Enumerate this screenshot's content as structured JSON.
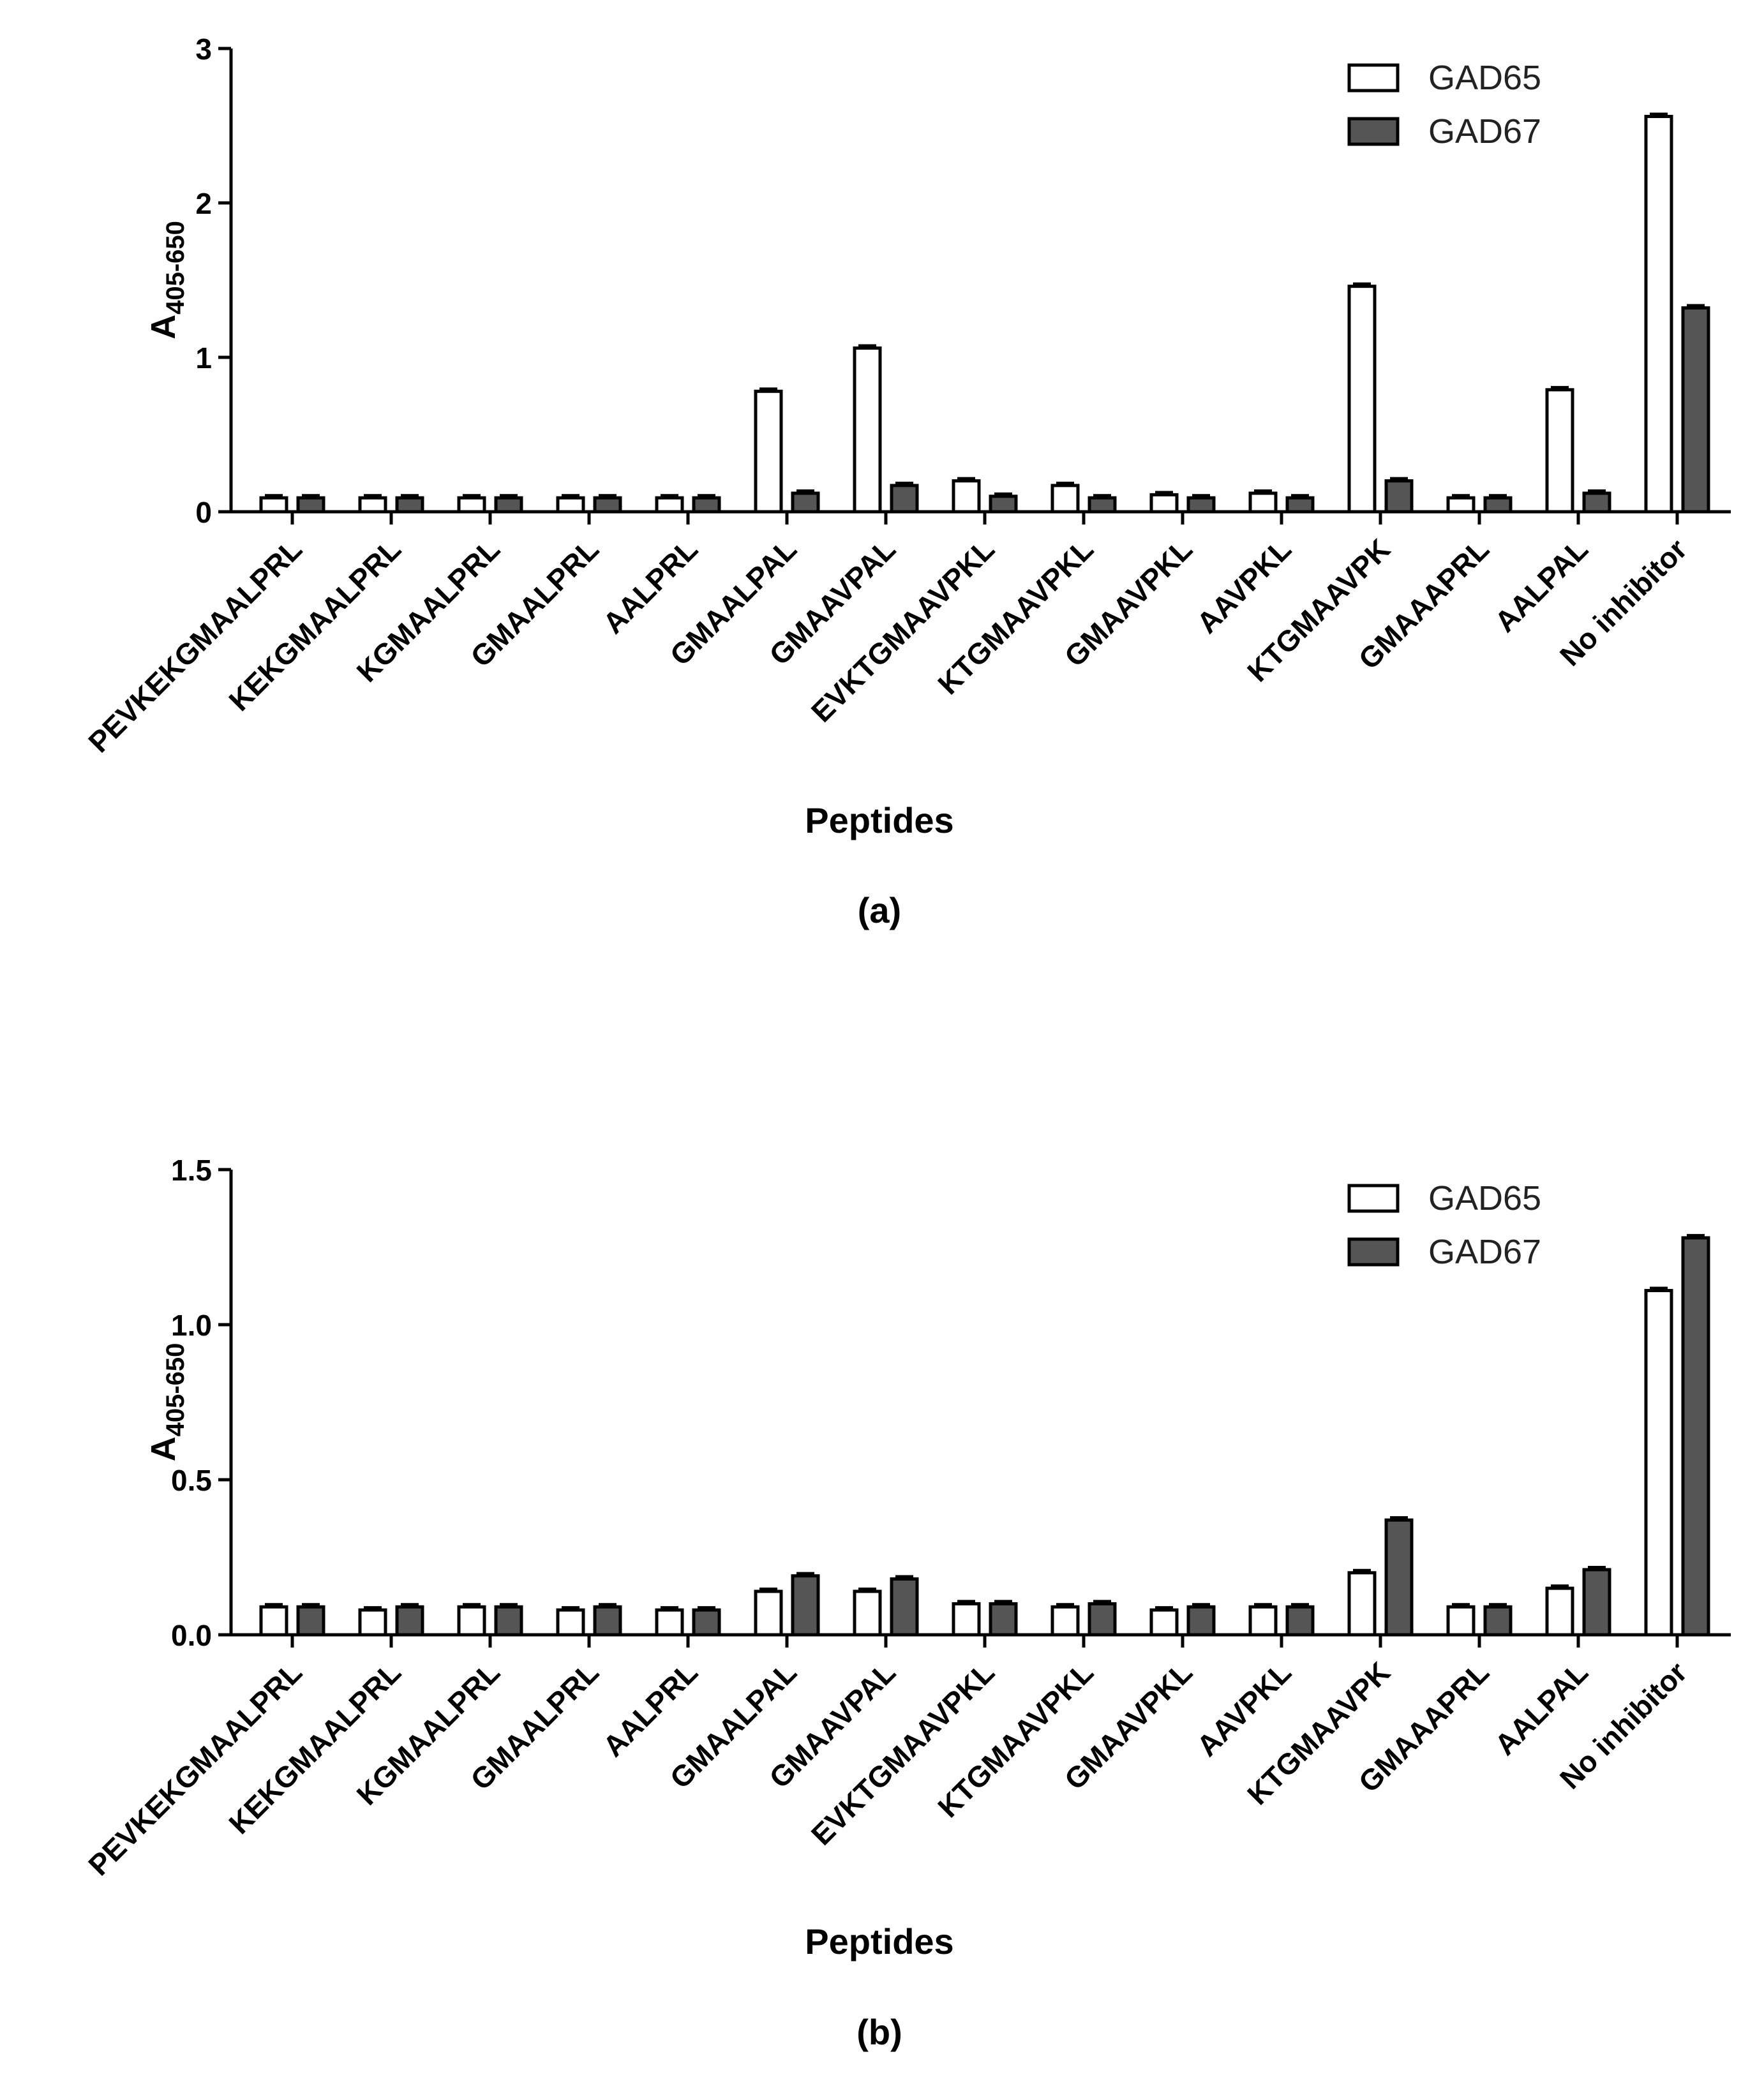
{
  "chart_data": [
    {
      "type": "bar",
      "panel_label": "(a)",
      "xlabel": "Peptides",
      "ylabel_main": "A",
      "ylabel_sub": "405-650",
      "ylim": [
        0,
        3
      ],
      "yticks": [
        0,
        1,
        2,
        3
      ],
      "ytick_labels": [
        "0",
        "1",
        "2",
        "3"
      ],
      "legend_position": "top-right",
      "categories": [
        "PEVKEKGMAALPRL",
        "KEKGMAALPRL",
        "KGMAALPRL",
        "GMAALPRL",
        "AALPRL",
        "GMAALPAL",
        "GMAAVPAL",
        "EVKTGMAAVPKL",
        "KTGMAAVPKL",
        "GMAAVPKL",
        "AAVPKL",
        "KTGMAAVPK",
        "GMAAAPRL",
        "AALPAL",
        "No inhibitor"
      ],
      "series": [
        {
          "name": "GAD65",
          "fill": "#ffffff",
          "values": [
            0.09,
            0.09,
            0.09,
            0.09,
            0.09,
            0.78,
            1.06,
            0.2,
            0.17,
            0.11,
            0.12,
            1.46,
            0.09,
            0.79,
            2.56
          ]
        },
        {
          "name": "GAD67",
          "fill": "#555555",
          "values": [
            0.09,
            0.09,
            0.09,
            0.09,
            0.09,
            0.12,
            0.17,
            0.1,
            0.09,
            0.09,
            0.09,
            0.2,
            0.09,
            0.12,
            1.32
          ]
        }
      ]
    },
    {
      "type": "bar",
      "panel_label": "(b)",
      "xlabel": "Peptides",
      "ylabel_main": "A",
      "ylabel_sub": "405-650",
      "ylim": [
        0,
        1.5
      ],
      "yticks": [
        0,
        0.5,
        1.0,
        1.5
      ],
      "ytick_labels": [
        "0.0",
        "0.5",
        "1.0",
        "1.5"
      ],
      "legend_position": "top-right",
      "categories": [
        "PEVKEKGMAALPRL",
        "KEKGMAALPRL",
        "KGMAALPRL",
        "GMAALPRL",
        "AALPRL",
        "GMAALPAL",
        "GMAAVPAL",
        "EVKTGMAAVPKL",
        "KTGMAAVPKL",
        "GMAAVPKL",
        "AAVPKL",
        "KTGMAAVPK",
        "GMAAAPRL",
        "AALPAL",
        "No inhibitor"
      ],
      "series": [
        {
          "name": "GAD65",
          "fill": "#ffffff",
          "values": [
            0.09,
            0.08,
            0.09,
            0.08,
            0.08,
            0.14,
            0.14,
            0.1,
            0.09,
            0.08,
            0.09,
            0.2,
            0.09,
            0.15,
            1.11
          ]
        },
        {
          "name": "GAD67",
          "fill": "#555555",
          "values": [
            0.09,
            0.09,
            0.09,
            0.09,
            0.08,
            0.19,
            0.18,
            0.1,
            0.1,
            0.09,
            0.09,
            0.37,
            0.09,
            0.21,
            1.28
          ]
        }
      ]
    }
  ]
}
